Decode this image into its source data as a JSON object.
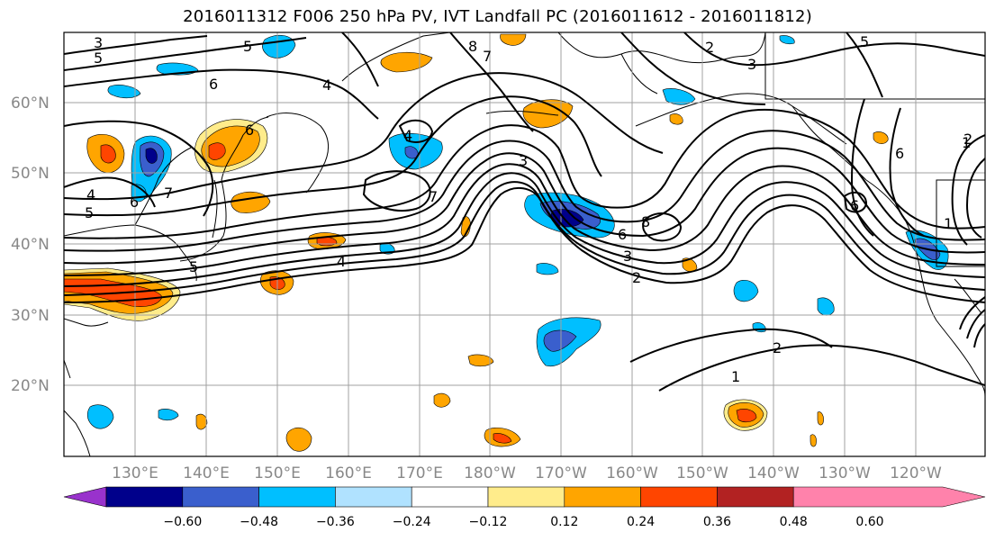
{
  "title": "2016011312 F006 250 hPa PV, IVT Landfall PC (2016011612 - 2016011812)",
  "lat_labels": [
    "60°N",
    "50°N",
    "40°N",
    "30°N",
    "20°N"
  ],
  "lon_labels": [
    "130°E",
    "140°E",
    "150°E",
    "160°E",
    "170°E",
    "180°W",
    "170°W",
    "160°W",
    "150°W",
    "140°W",
    "130°W",
    "120°W"
  ],
  "colorbar": {
    "ticks": [
      "−0.60",
      "−0.48",
      "−0.36",
      "−0.24",
      "−0.12",
      "0.12",
      "0.24",
      "0.36",
      "0.48",
      "0.60"
    ],
    "colors": [
      "#9932CC",
      "#00008B",
      "#3A5FCD",
      "#00BFFF",
      "#B0E2FF",
      "#FFFFFF",
      "#FFEC8B",
      "#FFA500",
      "#FF4500",
      "#B22222",
      "#FF82AB"
    ]
  },
  "contour_labels": [
    "3",
    "5",
    "6",
    "4",
    "5",
    "8",
    "7",
    "2",
    "3",
    "5",
    "4",
    "5",
    "6",
    "6",
    "7",
    "4",
    "5",
    "7",
    "3",
    "4",
    "8",
    "6",
    "3",
    "2",
    "1",
    "2",
    "1",
    "6",
    "6",
    "1",
    "2"
  ]
}
